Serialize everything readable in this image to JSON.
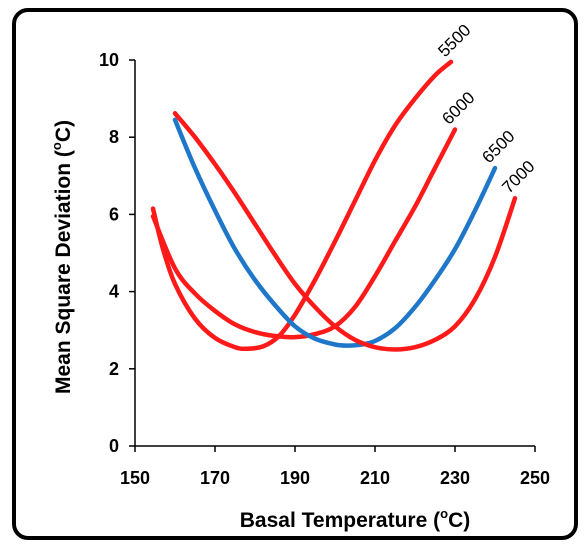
{
  "chart_data": {
    "type": "line",
    "xlabel": "Basal Temperature (°C)",
    "xlabel_main": "Basal Temperature (",
    "xlabel_sup": "o",
    "xlabel_end": "C)",
    "ylabel_main": "Mean Square Deviation (",
    "ylabel_sup": "o",
    "ylabel_end": "C)",
    "xlim": [
      150,
      250
    ],
    "ylim": [
      0,
      10
    ],
    "x_ticks": [
      150,
      170,
      190,
      210,
      230,
      250
    ],
    "y_ticks": [
      0,
      2,
      4,
      6,
      8,
      10
    ],
    "grid": false,
    "legend": "none",
    "series": [
      {
        "name": "5500",
        "color": "#ff1a1a",
        "x": [
          154.5,
          157,
          160,
          165,
          170,
          175,
          178,
          182,
          186,
          190,
          195,
          200,
          205,
          210,
          215,
          220,
          225,
          229
        ],
        "y": [
          6.15,
          5.1,
          4.2,
          3.3,
          2.8,
          2.56,
          2.52,
          2.58,
          2.85,
          3.4,
          4.3,
          5.3,
          6.35,
          7.4,
          8.3,
          9.0,
          9.6,
          9.95
        ]
      },
      {
        "name": "6000",
        "color": "#ff1a1a",
        "x": [
          154.5,
          160,
          165,
          170,
          175,
          180,
          185,
          190,
          195,
          200,
          205,
          210,
          215,
          220,
          225,
          230
        ],
        "y": [
          5.95,
          4.6,
          3.95,
          3.5,
          3.15,
          2.95,
          2.85,
          2.82,
          2.9,
          3.1,
          3.6,
          4.4,
          5.3,
          6.2,
          7.2,
          8.2
        ]
      },
      {
        "name": "6500",
        "color": "#1f77c9",
        "x": [
          160,
          165,
          170,
          175,
          180,
          185,
          190,
          195,
          200,
          203,
          206,
          210,
          215,
          220,
          225,
          230,
          235,
          240
        ],
        "y": [
          8.45,
          7.2,
          6.1,
          5.1,
          4.3,
          3.65,
          3.1,
          2.78,
          2.63,
          2.6,
          2.62,
          2.72,
          3.05,
          3.6,
          4.3,
          5.1,
          6.1,
          7.2
        ]
      },
      {
        "name": "7000",
        "color": "#ff1a1a",
        "x": [
          160,
          165,
          170,
          175,
          180,
          185,
          190,
          195,
          200,
          205,
          210,
          215,
          220,
          225,
          230,
          235,
          240,
          245
        ],
        "y": [
          8.62,
          8.0,
          7.3,
          6.55,
          5.75,
          4.95,
          4.2,
          3.6,
          3.1,
          2.75,
          2.56,
          2.5,
          2.56,
          2.75,
          3.1,
          3.8,
          4.9,
          6.42
        ]
      }
    ]
  }
}
